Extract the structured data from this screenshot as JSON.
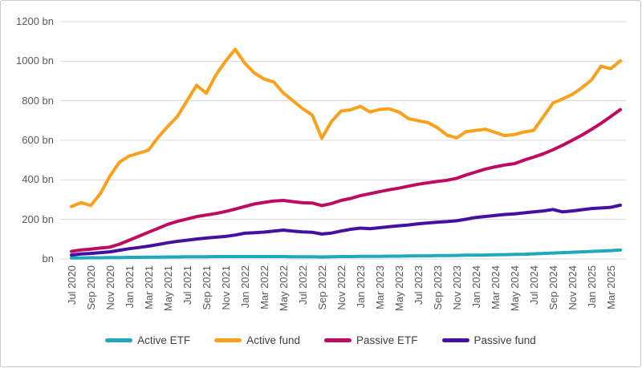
{
  "chart_data": {
    "type": "line",
    "title": "",
    "unit": "bn",
    "xlabel": "",
    "ylabel": "",
    "ylim": [
      0,
      1200
    ],
    "ytick_step": 200,
    "ytick_labels": [
      "bn",
      "200 bn",
      "400 bn",
      "600 bn",
      "800 bn",
      "1000 bn",
      "1200 bn"
    ],
    "grid": true,
    "legend_position": "bottom",
    "x_tick_every": 2,
    "x": [
      "Jul 2020",
      "Aug 2020",
      "Sep 2020",
      "Oct 2020",
      "Nov 2020",
      "Dec 2020",
      "Jan 2021",
      "Feb 2021",
      "Mar 2021",
      "Apr 2021",
      "May 2021",
      "Jun 2021",
      "Jul 2021",
      "Aug 2021",
      "Sep 2021",
      "Oct 2021",
      "Nov 2021",
      "Dec 2021",
      "Jan 2022",
      "Feb 2022",
      "Mar 2022",
      "Apr 2022",
      "May 2022",
      "Jun 2022",
      "Jul 2022",
      "Aug 2022",
      "Sep 2022",
      "Oct 2022",
      "Nov 2022",
      "Dec 2022",
      "Jan 2023",
      "Feb 2023",
      "Mar 2023",
      "Apr 2023",
      "May 2023",
      "Jun 2023",
      "Jul 2023",
      "Aug 2023",
      "Sep 2023",
      "Oct 2023",
      "Nov 2023",
      "Dec 2023",
      "Jan 2024",
      "Feb 2024",
      "Mar 2024",
      "Apr 2024",
      "May 2024",
      "Jun 2024",
      "Jul 2024",
      "Aug 2024",
      "Sep 2024",
      "Oct 2024",
      "Nov 2024",
      "Dec 2024",
      "Jan 2025",
      "Feb 2025",
      "Mar 2025",
      "Apr 2025"
    ],
    "series": [
      {
        "name": "Active ETF",
        "color": "#1FA9BB",
        "values": [
          5,
          5,
          6,
          6,
          7,
          7,
          8,
          8,
          9,
          9,
          10,
          10,
          11,
          11,
          11,
          12,
          12,
          12,
          12,
          12,
          12,
          12,
          12,
          11,
          11,
          11,
          10,
          11,
          12,
          12,
          13,
          13,
          13,
          14,
          14,
          15,
          16,
          16,
          17,
          17,
          18,
          19,
          19,
          20,
          21,
          22,
          23,
          24,
          26,
          28,
          30,
          32,
          34,
          36,
          38,
          40,
          42,
          45
        ]
      },
      {
        "name": "Active fund",
        "color": "#F9A11B",
        "values": [
          265,
          285,
          270,
          330,
          420,
          490,
          520,
          535,
          550,
          615,
          670,
          720,
          800,
          878,
          838,
          930,
          1000,
          1060,
          990,
          940,
          910,
          895,
          840,
          800,
          760,
          728,
          610,
          695,
          748,
          754,
          772,
          743,
          756,
          759,
          743,
          710,
          699,
          690,
          664,
          626,
          612,
          644,
          650,
          656,
          640,
          624,
          629,
          642,
          650,
          719,
          788,
          809,
          832,
          865,
          905,
          975,
          962,
          1002
        ]
      },
      {
        "name": "Passive ETF",
        "color": "#BE0B60",
        "values": [
          38,
          46,
          50,
          55,
          60,
          75,
          95,
          115,
          135,
          155,
          175,
          190,
          202,
          214,
          222,
          230,
          240,
          252,
          265,
          278,
          286,
          293,
          296,
          290,
          284,
          283,
          270,
          280,
          296,
          306,
          320,
          330,
          340,
          350,
          358,
          368,
          378,
          385,
          392,
          398,
          408,
          425,
          440,
          455,
          466,
          475,
          482,
          500,
          515,
          532,
          552,
          575,
          600,
          626,
          655,
          686,
          720,
          755
        ]
      },
      {
        "name": "Passive fund",
        "color": "#4410A0",
        "values": [
          20,
          25,
          28,
          32,
          36,
          44,
          52,
          58,
          65,
          73,
          82,
          89,
          95,
          101,
          106,
          110,
          114,
          121,
          130,
          133,
          136,
          141,
          146,
          141,
          137,
          135,
          126,
          131,
          141,
          150,
          156,
          153,
          158,
          163,
          168,
          172,
          178,
          182,
          186,
          189,
          193,
          201,
          210,
          215,
          220,
          225,
          228,
          233,
          238,
          243,
          250,
          238,
          243,
          249,
          255,
          258,
          261,
          272
        ]
      }
    ],
    "grid_color": "#d9d9d9",
    "axis_label_color": "#595959",
    "legend_text_color": "#404040"
  }
}
